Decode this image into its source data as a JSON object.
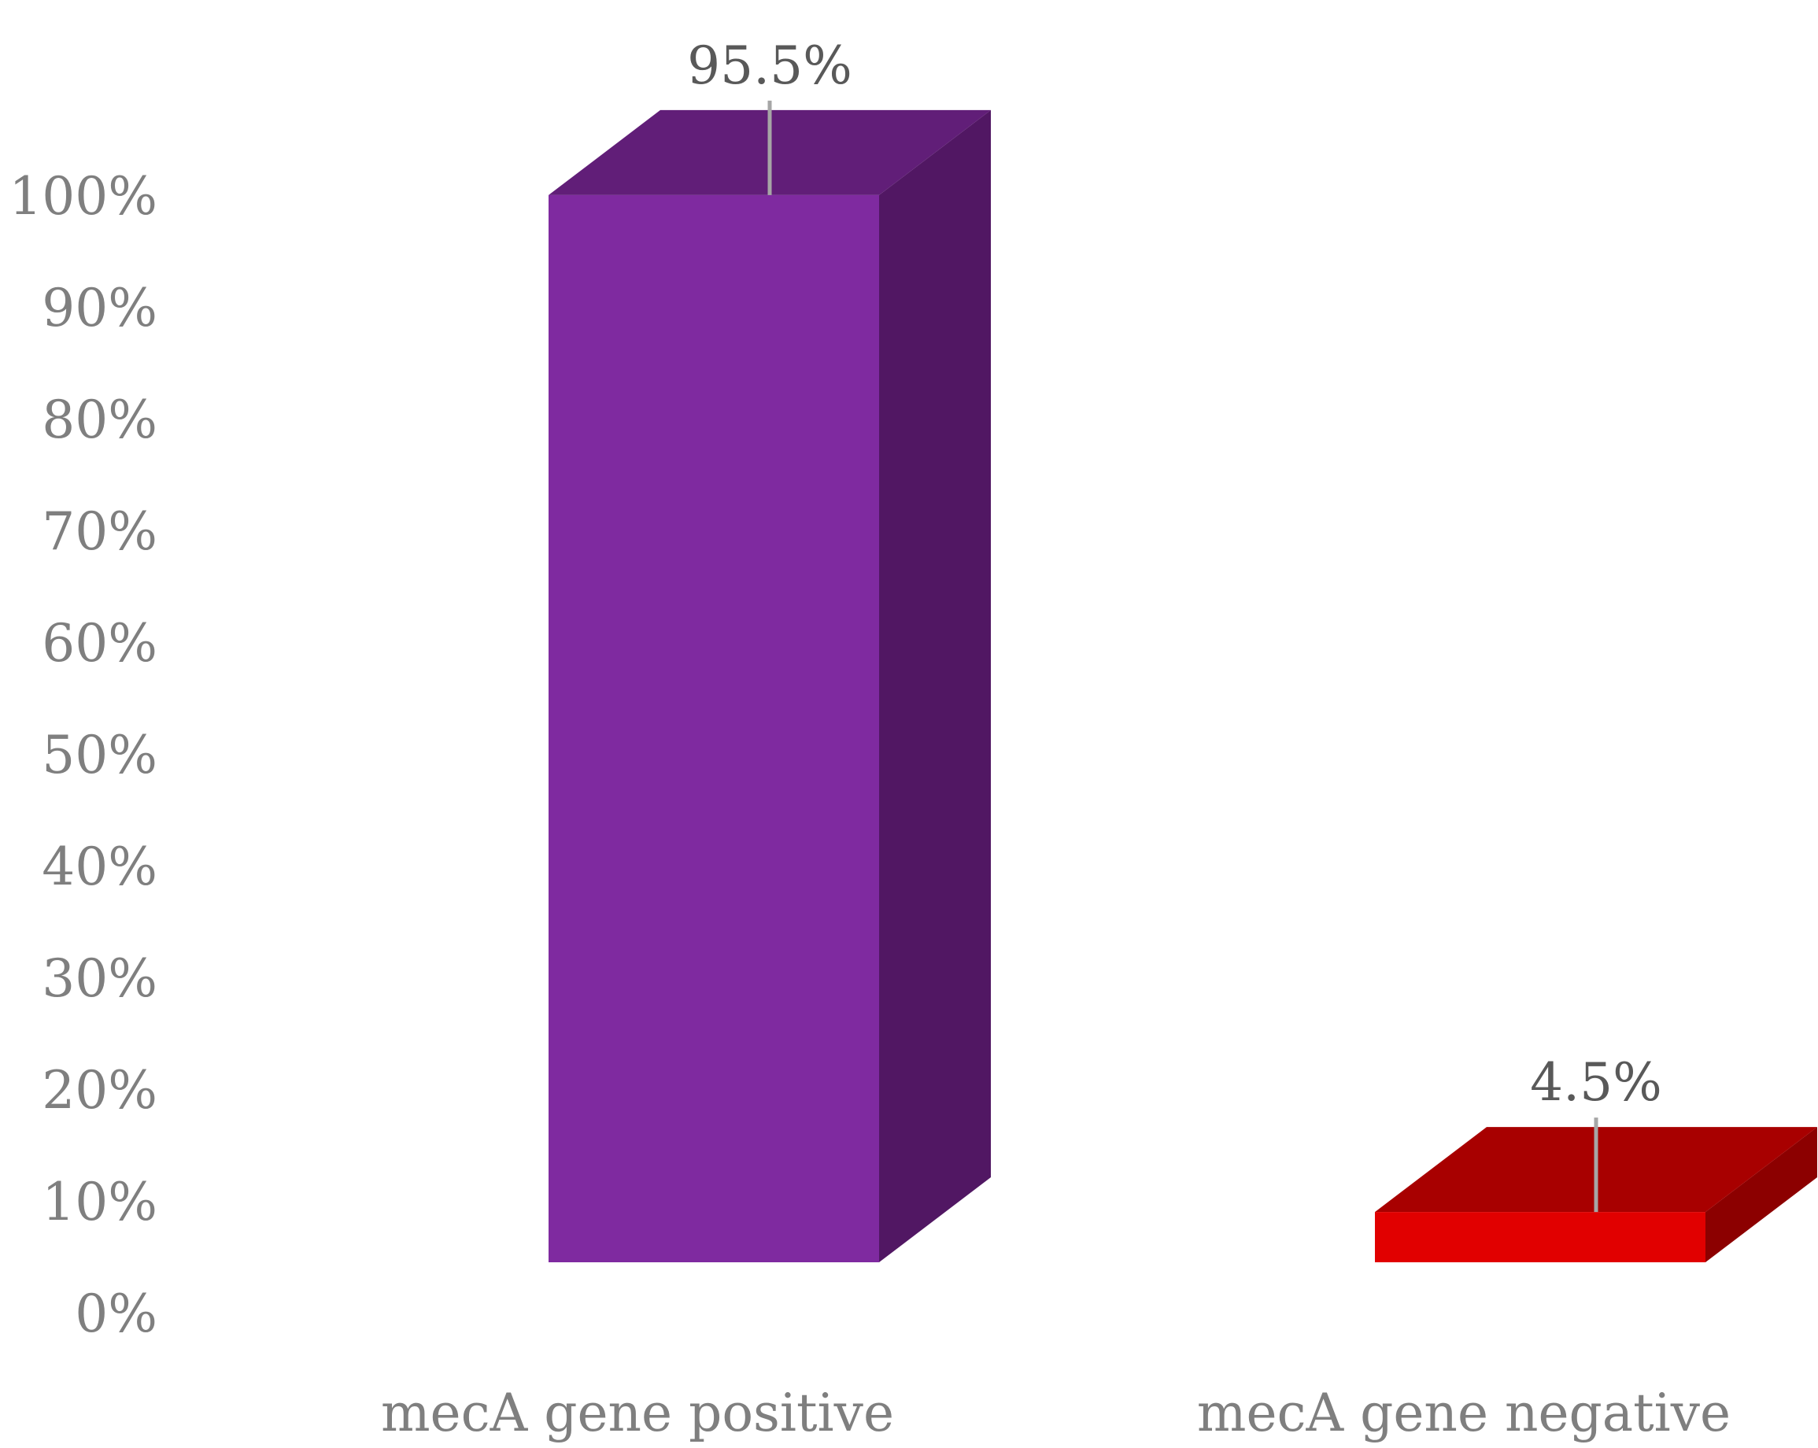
{
  "chart_data": {
    "type": "bar",
    "style": "3d-column",
    "title": "",
    "xlabel": "",
    "ylabel": "",
    "categories": [
      "mecA gene positive",
      "mecA gene negative"
    ],
    "values": [
      95.5,
      4.5
    ],
    "data_labels": [
      "95.5%",
      "4.5%"
    ],
    "y_ticks": [
      "0%",
      "10%",
      "20%",
      "30%",
      "40%",
      "50%",
      "60%",
      "70%",
      "80%",
      "90%",
      "100%"
    ],
    "ylim": [
      0,
      100
    ],
    "grid": false,
    "legend": "none",
    "colors": {
      "bars": [
        {
          "front": "#7f2aa0",
          "top": "#611e78",
          "side": "#511763"
        },
        {
          "front": "#e10000",
          "top": "#a80000",
          "side": "#8c0000"
        }
      ],
      "tick_text": "#7f7f7f",
      "data_label_text": "#595959",
      "leader_line": "#a6a6a6"
    }
  }
}
